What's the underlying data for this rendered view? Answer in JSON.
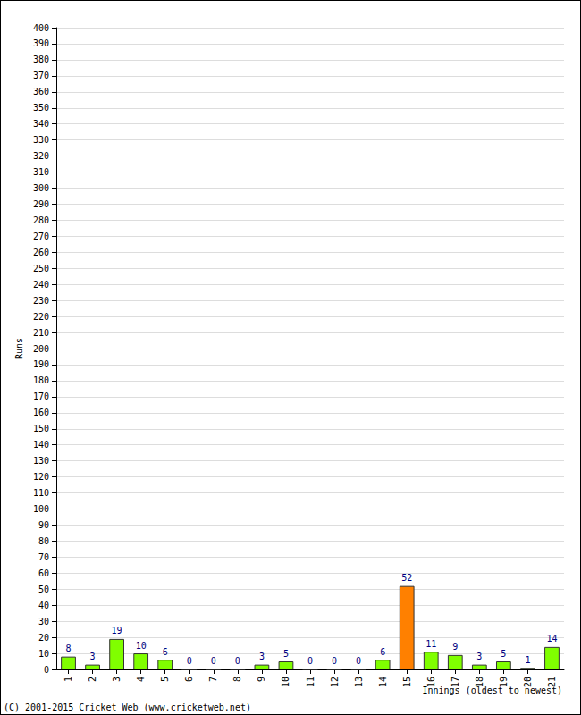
{
  "chart_data": {
    "type": "bar",
    "categories": [
      "1",
      "2",
      "3",
      "4",
      "5",
      "6",
      "7",
      "8",
      "9",
      "10",
      "11",
      "12",
      "13",
      "14",
      "15",
      "16",
      "17",
      "18",
      "19",
      "20",
      "21"
    ],
    "values": [
      8,
      3,
      19,
      10,
      6,
      0,
      0,
      0,
      3,
      5,
      0,
      0,
      0,
      6,
      52,
      11,
      9,
      3,
      5,
      1,
      14
    ],
    "colors": [
      "#80ff00",
      "#80ff00",
      "#80ff00",
      "#80ff00",
      "#80ff00",
      "#80ff00",
      "#80ff00",
      "#80ff00",
      "#80ff00",
      "#80ff00",
      "#80ff00",
      "#80ff00",
      "#80ff00",
      "#80ff00",
      "#ff8000",
      "#80ff00",
      "#80ff00",
      "#80ff00",
      "#80ff00",
      "#80ff00",
      "#80ff00"
    ],
    "xlabel": "Innings (oldest to newest)",
    "ylabel": "Runs",
    "annotations": [
      "(C) 2001-2015 Cricket Web (www.cricketweb.net)"
    ],
    "ylim": [
      0,
      400
    ],
    "yticks": [
      0,
      10,
      20,
      30,
      40,
      50,
      60,
      70,
      80,
      90,
      100,
      110,
      120,
      130,
      140,
      150,
      160,
      170,
      180,
      190,
      200,
      210,
      220,
      230,
      240,
      250,
      260,
      270,
      280,
      290,
      300,
      310,
      320,
      330,
      340,
      350,
      360,
      370,
      380,
      390,
      400
    ],
    "grid": true,
    "data_labels": true
  }
}
